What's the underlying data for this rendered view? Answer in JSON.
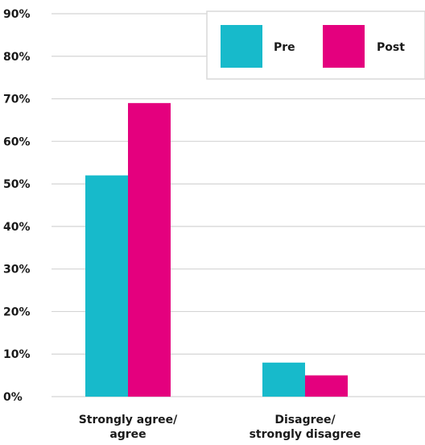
{
  "chart_data": {
    "type": "bar",
    "categories": [
      [
        "Strongly agree/",
        "agree"
      ],
      [
        "Disagree/",
        "strongly disagree"
      ]
    ],
    "series": [
      {
        "name": "Pre",
        "color": "#17bacb",
        "values": [
          52,
          8
        ]
      },
      {
        "name": "Post",
        "color": "#e4007e",
        "values": [
          69,
          5
        ]
      }
    ],
    "ylim": [
      0,
      90
    ],
    "yticks": [
      0,
      10,
      20,
      30,
      40,
      50,
      60,
      70,
      80,
      90
    ],
    "ytick_suffix": "%",
    "grid": true,
    "legend_position": "top-right",
    "title": "",
    "xlabel": "",
    "ylabel": ""
  }
}
